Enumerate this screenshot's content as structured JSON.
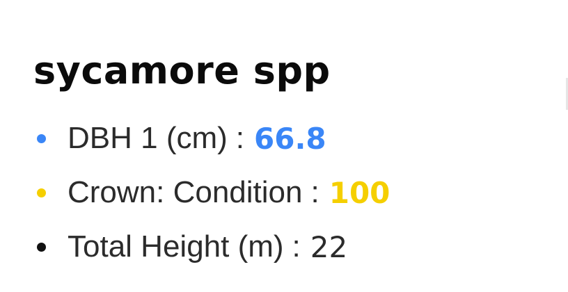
{
  "popup": {
    "title": "sycamore spp",
    "attributes": [
      {
        "label": "DBH 1 (cm)",
        "separator": ":",
        "value": "66.8",
        "color": "#3a86f7",
        "bold": true
      },
      {
        "label": "Crown: Condition",
        "separator": ":",
        "value": "100",
        "color": "#f5cf00",
        "bold": true
      },
      {
        "label": "Total Height (m)",
        "separator": ":",
        "value": "22",
        "color": "#111111",
        "bold": false
      }
    ]
  }
}
